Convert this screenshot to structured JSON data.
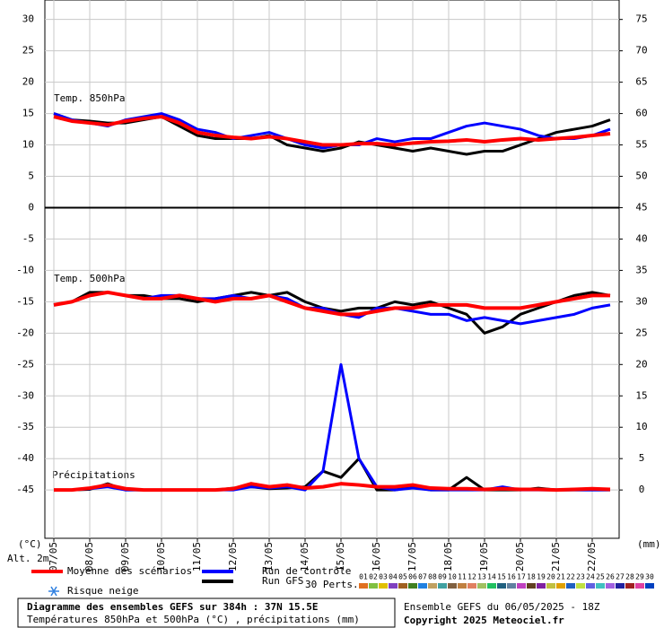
{
  "chart_data": {
    "type": "line",
    "title": "Diagramme des ensembles GEFS sur 384h : 37N 15.5E",
    "subtitle": "Températures 850hPa et 500hPa (°C) , précipitations (mm)",
    "run_info": "Ensemble GEFS du 06/05/2025 - 18Z",
    "copyright": "Copyright 2025 Meteociel.fr",
    "y_unit": "(°C)",
    "y2_unit": "(mm)",
    "altitude": "Alt. 2m",
    "panel_labels": {
      "t850": "Temp. 850hPa",
      "t500": "Temp. 500hPa",
      "precip": "Précipitations"
    },
    "snow_label": "Risque neige",
    "perturbations_label": "30 Perts.",
    "grid": true,
    "xlim": [
      0,
      384
    ],
    "ylim": [
      -52.7,
      33.1
    ],
    "y2lim": [
      -7.7,
      78.1
    ],
    "separator": 0,
    "xticks": [
      {
        "value": 6,
        "label": "07/05"
      },
      {
        "value": 30,
        "label": "08/05"
      },
      {
        "value": 54,
        "label": "09/05"
      },
      {
        "value": 78,
        "label": "10/05"
      },
      {
        "value": 102,
        "label": "11/05"
      },
      {
        "value": 126,
        "label": "12/05"
      },
      {
        "value": 150,
        "label": "13/05"
      },
      {
        "value": 174,
        "label": "14/05"
      },
      {
        "value": 198,
        "label": "15/05"
      },
      {
        "value": 222,
        "label": "16/05"
      },
      {
        "value": 246,
        "label": "17/05"
      },
      {
        "value": 270,
        "label": "18/05"
      },
      {
        "value": 294,
        "label": "19/05"
      },
      {
        "value": 318,
        "label": "20/05"
      },
      {
        "value": 342,
        "label": "21/05"
      },
      {
        "value": 366,
        "label": "22/05"
      }
    ],
    "yticks": [
      30,
      25,
      20,
      15,
      10,
      5,
      0,
      -5,
      -10,
      -15,
      -20,
      -25,
      -30,
      -35,
      -40,
      -45
    ],
    "y2ticks": [
      75,
      70,
      65,
      60,
      55,
      50,
      45,
      40,
      35,
      30,
      25,
      20,
      15,
      10,
      5,
      0
    ],
    "x": [
      6,
      18,
      30,
      42,
      54,
      66,
      78,
      90,
      102,
      114,
      126,
      138,
      150,
      162,
      174,
      186,
      198,
      210,
      222,
      234,
      246,
      258,
      270,
      282,
      294,
      306,
      318,
      330,
      342,
      354,
      366,
      378
    ],
    "series": [
      {
        "name": "Moyenne des scénarios",
        "color": "#ff0000",
        "width": 4,
        "t850": [
          14.5,
          13.8,
          13.5,
          13.2,
          13.8,
          14.2,
          14.5,
          13.5,
          12,
          11.5,
          11.2,
          11,
          11.3,
          11,
          10.5,
          10,
          10,
          10.2,
          10.2,
          10,
          10.3,
          10.5,
          10.6,
          10.8,
          10.5,
          10.8,
          11,
          10.8,
          11,
          11.2,
          11.5,
          11.8
        ],
        "t500": [
          -15.5,
          -15,
          -14,
          -13.5,
          -14,
          -14.5,
          -14.5,
          -14,
          -14.5,
          -15,
          -14.5,
          -14.5,
          -14,
          -15,
          -16,
          -16.5,
          -17,
          -17,
          -16.5,
          -16,
          -16,
          -15.5,
          -15.5,
          -15.5,
          -16,
          -16,
          -16,
          -15.5,
          -15,
          -14.5,
          -14,
          -14
        ],
        "precip": [
          0,
          0,
          0.3,
          0.8,
          0.2,
          0,
          0,
          0,
          0,
          0,
          0.2,
          1,
          0.5,
          0.8,
          0.3,
          0.5,
          1,
          0.8,
          0.5,
          0.5,
          0.8,
          0.3,
          0.2,
          0.2,
          0.1,
          0.2,
          0.1,
          0.1,
          0,
          0.1,
          0.2,
          0.1
        ]
      },
      {
        "name": "Run de contrôle",
        "color": "#0000ff",
        "width": 3,
        "t850": [
          15,
          14,
          13.5,
          13,
          14,
          14.5,
          15,
          14,
          12.5,
          12,
          11,
          11.5,
          12,
          11,
          10,
          9.5,
          10,
          10,
          11,
          10.5,
          11,
          11,
          12,
          13,
          13.5,
          13,
          12.5,
          11.5,
          11,
          11,
          11.5,
          12.5
        ],
        "t500": [
          -15.5,
          -15,
          -14,
          -13.5,
          -14,
          -14.5,
          -14,
          -14,
          -14.5,
          -14.5,
          -14,
          -14.5,
          -14,
          -14.5,
          -16,
          -16,
          -17,
          -17.5,
          -16,
          -16,
          -16.5,
          -17,
          -17,
          -18,
          -17.5,
          -18,
          -18.5,
          -18,
          -17.5,
          -17,
          -16,
          -15.5
        ],
        "precip": [
          0,
          0,
          0.2,
          0.5,
          0,
          0,
          0,
          0,
          0,
          0,
          0,
          0.5,
          0.3,
          0.5,
          0,
          3,
          20,
          5,
          0.5,
          0,
          0.3,
          0,
          0,
          0,
          0,
          0.5,
          0,
          0,
          0,
          0,
          0,
          0
        ]
      },
      {
        "name": "Run GFS",
        "color": "#000000",
        "width": 3,
        "t850": [
          15,
          14,
          13.8,
          13.5,
          13.5,
          14,
          14.5,
          13,
          11.5,
          11,
          11,
          11,
          11.5,
          10,
          9.5,
          9,
          9.5,
          10.5,
          10,
          9.5,
          9,
          9.5,
          9,
          8.5,
          9,
          9,
          10,
          11,
          12,
          12.5,
          13,
          14
        ],
        "t500": [
          -15.5,
          -15,
          -13.5,
          -13.5,
          -14,
          -14,
          -14.5,
          -14.5,
          -15,
          -14.5,
          -14,
          -13.5,
          -14,
          -13.5,
          -15,
          -16,
          -16.5,
          -16,
          -16,
          -15,
          -15.5,
          -15,
          -16,
          -17,
          -20,
          -19,
          -17,
          -16,
          -15,
          -14,
          -13.5,
          -14
        ],
        "precip": [
          0,
          0,
          0.1,
          1,
          0,
          0,
          0,
          0,
          0,
          0,
          0.3,
          0.5,
          0.2,
          0.3,
          0.5,
          3,
          2,
          5,
          0,
          0,
          0.5,
          0,
          0,
          2,
          0,
          0,
          0,
          0.3,
          0,
          0,
          0,
          0
        ]
      }
    ],
    "perturbations": [
      {
        "name": "01",
        "color": "#e07020"
      },
      {
        "name": "02",
        "color": "#80c040"
      },
      {
        "name": "03",
        "color": "#e0c000"
      },
      {
        "name": "04",
        "color": "#8040c0"
      },
      {
        "name": "05",
        "color": "#a06020"
      },
      {
        "name": "06",
        "color": "#408020"
      },
      {
        "name": "07",
        "color": "#2080e0"
      },
      {
        "name": "08",
        "color": "#c0a060"
      },
      {
        "name": "09",
        "color": "#40a0a0"
      },
      {
        "name": "10",
        "color": "#806040"
      },
      {
        "name": "11",
        "color": "#c08040"
      },
      {
        "name": "12",
        "color": "#e08060"
      },
      {
        "name": "13",
        "color": "#a0c060"
      },
      {
        "name": "14",
        "color": "#20c060"
      },
      {
        "name": "15",
        "color": "#206080"
      },
      {
        "name": "16",
        "color": "#6080a0"
      },
      {
        "name": "17",
        "color": "#c040c0"
      },
      {
        "name": "18",
        "color": "#604020"
      },
      {
        "name": "19",
        "color": "#8020a0"
      },
      {
        "name": "20",
        "color": "#c0c040"
      },
      {
        "name": "21",
        "color": "#e0a000"
      },
      {
        "name": "22",
        "color": "#2060c0"
      },
      {
        "name": "23",
        "color": "#c0e040"
      },
      {
        "name": "24",
        "color": "#6060e0"
      },
      {
        "name": "25",
        "color": "#40c0c0"
      },
      {
        "name": "26",
        "color": "#a060e0"
      },
      {
        "name": "27",
        "color": "#2020a0"
      },
      {
        "name": "28",
        "color": "#a02020"
      },
      {
        "name": "29",
        "color": "#e040a0"
      },
      {
        "name": "30",
        "color": "#0040c0"
      }
    ]
  }
}
